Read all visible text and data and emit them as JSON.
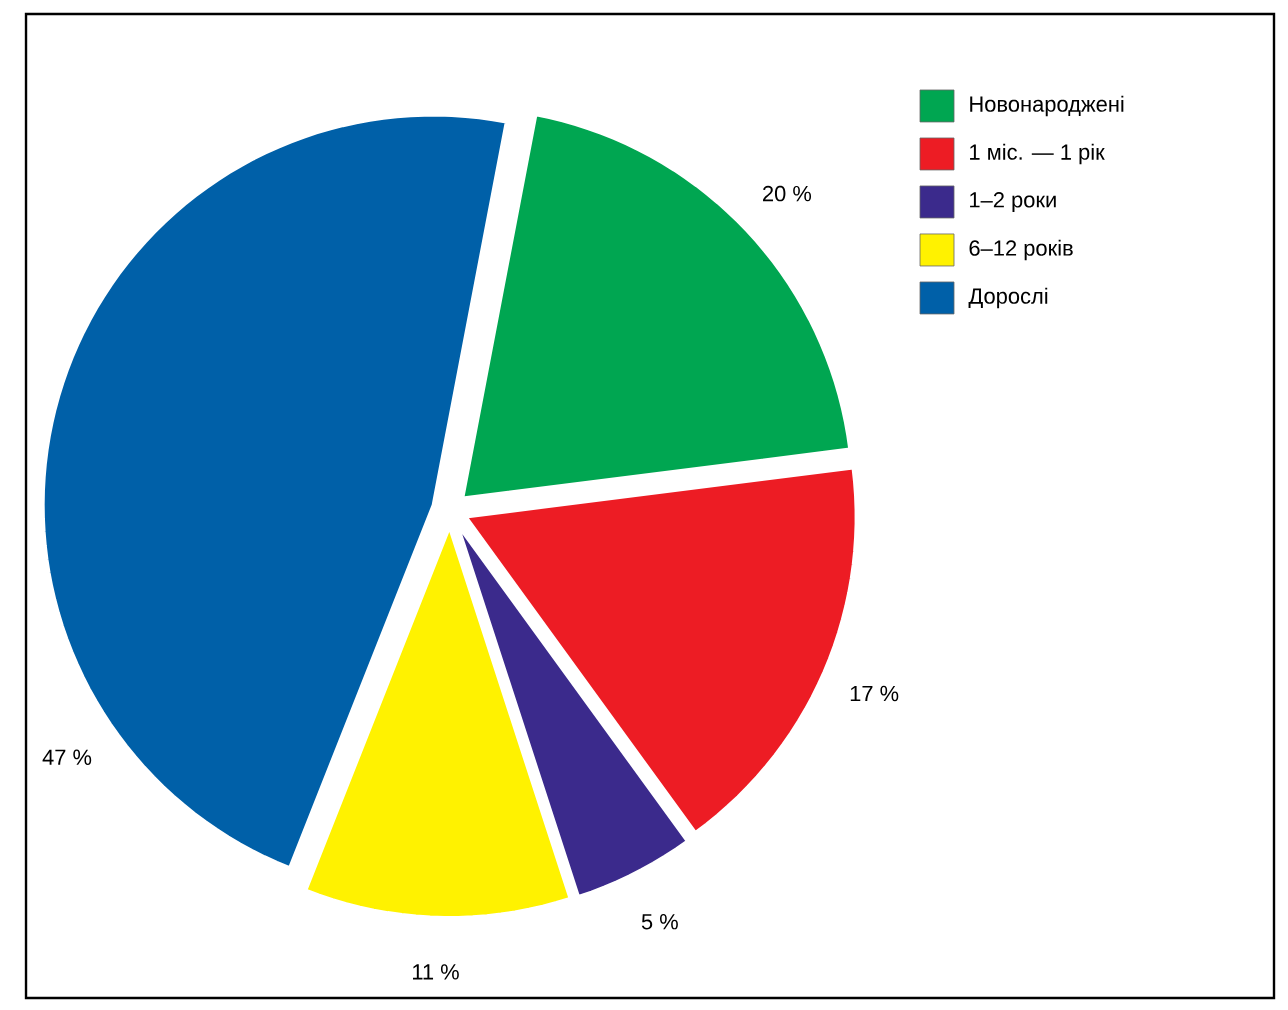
{
  "chart_data": {
    "type": "pie",
    "categories": [
      "Новонароджені",
      "1 міс. — 1 рік",
      "1–2 роки",
      "6–12 років",
      "Дорослі"
    ],
    "values": [
      20,
      17,
      5,
      11,
      47
    ],
    "colors": [
      "#00a651",
      "#ed1c24",
      "#3b2a8c",
      "#fff200",
      "#0060a8"
    ],
    "value_labels": [
      "20 %",
      "17 %",
      "5 %",
      "11 %",
      "47 %"
    ],
    "legend": "top right"
  }
}
